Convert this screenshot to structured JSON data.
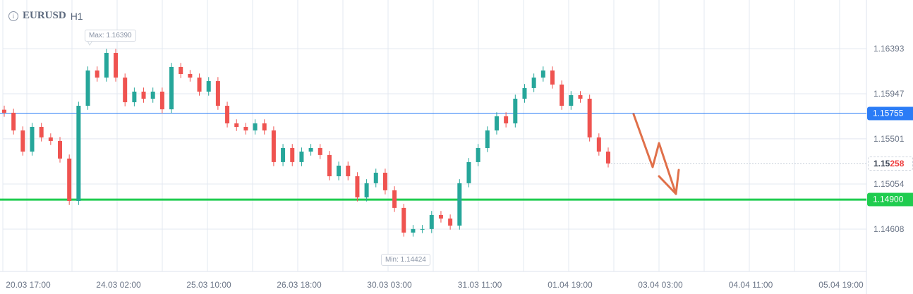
{
  "header": {
    "symbol": "EURUSD",
    "timeframe": "H1",
    "info_icon": "info-icon"
  },
  "colors": {
    "bull": "#26a69a",
    "bear": "#ef5350",
    "resistance": "#2b7cf6",
    "support": "#1fcc4f",
    "arrow": "#e0704a",
    "grid": "#e3e8f1"
  },
  "chart_data": {
    "type": "candlestick",
    "symbol": "EURUSD",
    "timeframe": "H1",
    "y_ticks": [
      1.16393,
      1.15947,
      1.15501,
      1.15054,
      1.14608
    ],
    "ylim": [
      1.1436,
      1.1676
    ],
    "x_ticks": [
      "20.03 17:00",
      "24.03 02:00",
      "25.03 10:00",
      "26.03 18:00",
      "30.03 03:00",
      "31.03 11:00",
      "01.04 19:00",
      "03.04 03:00",
      "04.04 11:00",
      "05.04 19:00"
    ],
    "closes": [
      1.15759,
      1.15584,
      1.15375,
      1.15619,
      1.15515,
      1.1548,
      1.15306,
      1.14887,
      1.15828,
      1.16177,
      1.16107,
      1.16351,
      1.16107,
      1.15863,
      1.15968,
      1.15898,
      1.15968,
      1.15793,
      1.16212,
      1.16142,
      1.16107,
      1.15968,
      1.16072,
      1.15828,
      1.15654,
      1.15619,
      1.15584,
      1.15654,
      1.15584,
      1.15271,
      1.1541,
      1.15271,
      1.15375,
      1.1541,
      1.15341,
      1.15131,
      1.15236,
      1.15131,
      1.14922,
      1.15062,
      1.15166,
      1.14992,
      1.14818,
      1.14574,
      1.14609,
      1.14609,
      1.14748,
      1.14713,
      1.14643,
      1.15062,
      1.15271,
      1.1541,
      1.15584,
      1.15724,
      1.15654,
      1.15898,
      1.16003,
      1.16107,
      1.16177,
      1.16038,
      1.15828,
      1.15933,
      1.15898,
      1.15515,
      1.15375,
      1.15258
    ],
    "max_label": "Max: 1.16390",
    "min_label": "Min: 1.14424",
    "current_price": {
      "prefix": "1.15",
      "suffix": "258"
    },
    "levels": [
      {
        "label": "1.15755",
        "value": 1.15755,
        "color": "#2b7cf6"
      },
      {
        "label": "1.14900",
        "value": 1.149,
        "color": "#1fcc4f"
      }
    ],
    "grid": true
  }
}
